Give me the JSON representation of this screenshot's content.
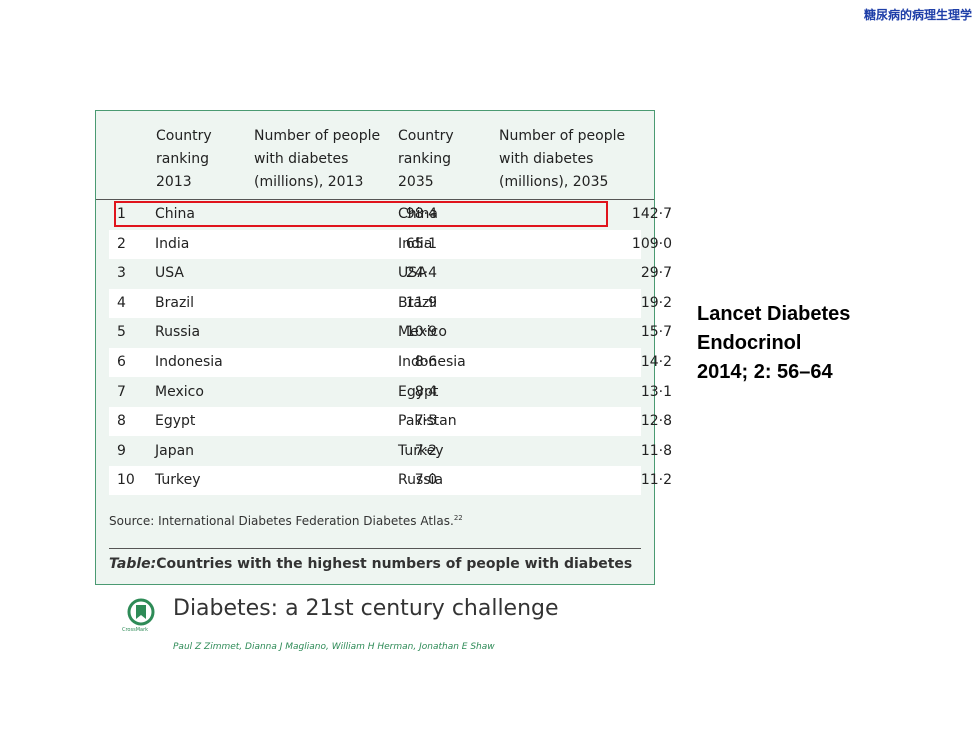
{
  "header": {
    "title": "糖尿病的病理生理学"
  },
  "table": {
    "columns": [
      [
        "Country",
        "ranking",
        "2013"
      ],
      [
        "Number of people",
        "with diabetes",
        "(millions), 2013"
      ],
      [
        "Country",
        "ranking",
        "2035"
      ],
      [
        "Number of people",
        "with diabetes",
        "(millions), 2035"
      ]
    ],
    "rows": [
      [
        "1",
        "China",
        "98·4",
        "China",
        "142·7"
      ],
      [
        "2",
        "India",
        "65·1",
        "India",
        "109·0"
      ],
      [
        "3",
        "USA",
        "24·4",
        "USA",
        "29·7"
      ],
      [
        "4",
        "Brazil",
        "11·9",
        "Brazil",
        "19·2"
      ],
      [
        "5",
        "Russia",
        "10·9",
        "Mexico",
        "15·7"
      ],
      [
        "6",
        "Indonesia",
        "8·6",
        "Indonesia",
        "14·2"
      ],
      [
        "7",
        "Mexico",
        "8·4",
        "Egypt",
        "13·1"
      ],
      [
        "8",
        "Egypt",
        "7·5",
        "Pakistan",
        "12·8"
      ],
      [
        "9",
        "Japan",
        "7·2",
        "Turkey",
        "11·8"
      ],
      [
        "10",
        "Turkey",
        "7·0",
        "Russia",
        "11·2"
      ]
    ],
    "source": {
      "text": "Source: International Diabetes Federation Diabetes Atlas.",
      "ref": "22"
    },
    "caption": {
      "label": "Table:",
      "text": "Countries with the highest numbers of people with diabetes"
    }
  },
  "article": {
    "crossmark": "CrossMark",
    "title": "Diabetes: a 21st century challenge",
    "authors": "Paul Z Zimmet, Dianna J Magliano, William H Herman, Jonathan E Shaw"
  },
  "citation": {
    "lines": [
      "Lancet Diabetes",
      "Endocrinol",
      "2014; 2: 56–64"
    ]
  }
}
